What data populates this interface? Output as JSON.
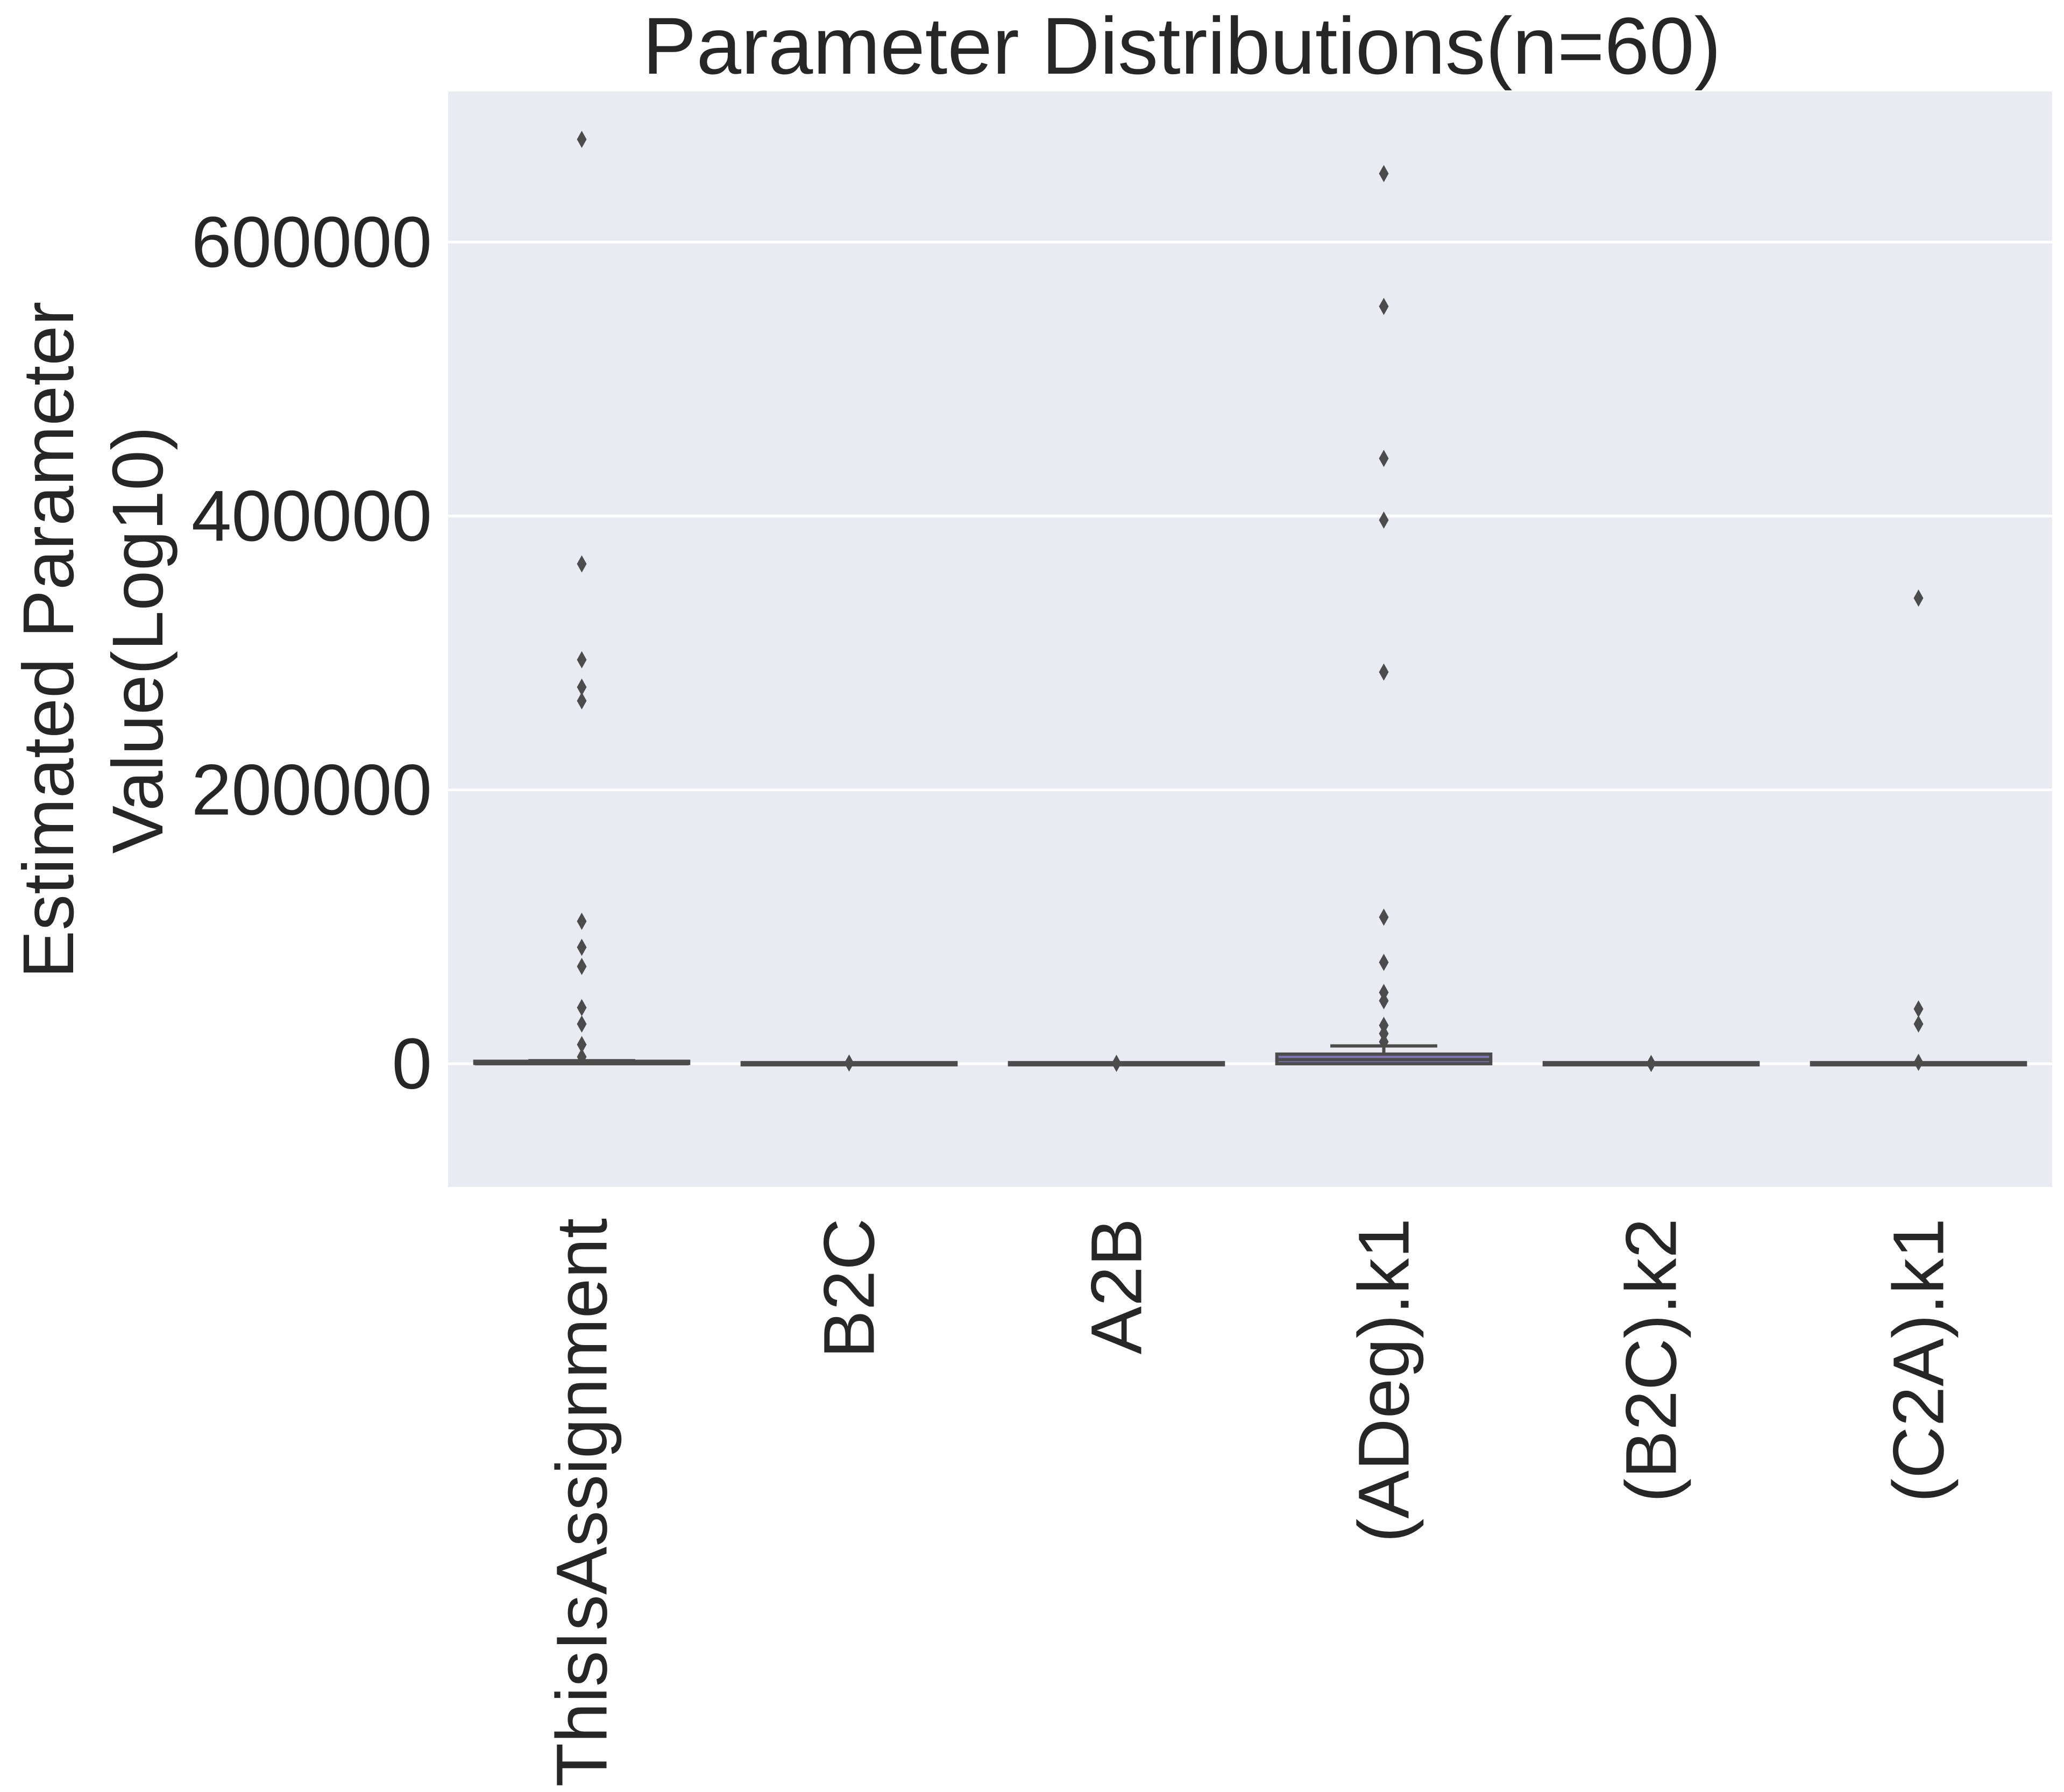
{
  "chart_data": {
    "type": "box",
    "title": "Parameter Distributions(n=60)",
    "xlabel": "",
    "ylabel_lines": [
      "Estimated Parameter",
      "Value(Log10)"
    ],
    "ylim": [
      -90000,
      710000
    ],
    "yticks": [
      0,
      200000,
      400000,
      600000
    ],
    "ytick_labels": [
      "0",
      "200000",
      "400000",
      "600000"
    ],
    "grid": true,
    "colors": {
      "background": "#eaeaf2",
      "grid": "#ffffff",
      "box_line": "#4c4c4c",
      "text": "#262626"
    },
    "categories": [
      "ThisIsAssignment",
      "B2C",
      "A2B",
      "(ADeg).k1",
      "(B2C).k2",
      "(C2A).k1"
    ],
    "boxes": [
      {
        "label": "ThisIsAssignment",
        "whislo": 0,
        "q1": 0,
        "median": 0,
        "q3": 1000,
        "whishi": 2200,
        "fliers": [
          675000,
          365000,
          295000,
          275000,
          265000,
          104000,
          85000,
          71000,
          41000,
          29000,
          14000,
          5000
        ],
        "color": "#4c72b0"
      },
      {
        "label": "B2C",
        "whislo": 0,
        "q1": 0,
        "median": 0,
        "q3": 0,
        "whishi": 0,
        "fliers": [
          500
        ],
        "color": "#dd8452"
      },
      {
        "label": "A2B",
        "whislo": 0,
        "q1": 0,
        "median": 0,
        "q3": 0,
        "whishi": 0,
        "fliers": [
          300
        ],
        "color": "#55a868"
      },
      {
        "label": "(ADeg).k1",
        "whislo": 0,
        "q1": 0,
        "median": 3000,
        "q3": 7000,
        "whishi": 13000,
        "fliers": [
          650000,
          553000,
          442000,
          397000,
          286000,
          107000,
          74000,
          52000,
          46000,
          28000,
          22000,
          16000
        ],
        "color": "#8172b3"
      },
      {
        "label": "(B2C).k2",
        "whislo": 0,
        "q1": 0,
        "median": 0,
        "q3": 0,
        "whishi": 0,
        "fliers": [
          200
        ],
        "color": "#937860"
      },
      {
        "label": "(C2A).k1",
        "whislo": 0,
        "q1": 0,
        "median": 0,
        "q3": 0,
        "whishi": 0,
        "fliers": [
          340000,
          40000,
          29000,
          1000
        ],
        "color": "#da8bc3"
      }
    ]
  }
}
